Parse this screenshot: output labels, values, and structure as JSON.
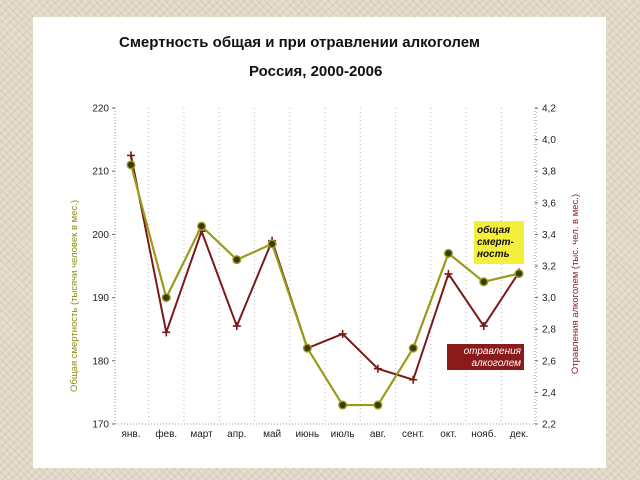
{
  "chart_data": {
    "type": "line",
    "title": "Смертность  общая  и  при  отравлении  алкоголем",
    "subtitle": "Россия, 2000-2006",
    "categories": [
      "янв.",
      "фев.",
      "март",
      "апр.",
      "май",
      "июнь",
      "июль",
      "авг.",
      "сент.",
      "окт.",
      "нояб.",
      "дек."
    ],
    "y_left": {
      "label": "Общая смертность (тысячи человек в мес.)",
      "ylim": [
        170,
        220
      ],
      "ticks": [
        "170",
        "180",
        "190",
        "200",
        "210",
        "220"
      ]
    },
    "y_right": {
      "label": "Отравления алкоголем (тыс. чел. в мес.)",
      "ylim": [
        2.2,
        4.2
      ],
      "ticks": [
        "2,2",
        "2,4",
        "2,6",
        "2,8",
        "3,0",
        "3,2",
        "3,4",
        "3,6",
        "3,8",
        "4,0",
        "4,2"
      ]
    },
    "grid": "vertical dotted",
    "series": [
      {
        "name": "общая смерт-ность",
        "axis": "left",
        "color": "#9a9a1a",
        "marker": "circle",
        "values": [
          211,
          190,
          201.3,
          196,
          198.5,
          182,
          173,
          173,
          182,
          197,
          192.5,
          193.8
        ]
      },
      {
        "name": "отравления алкоголем",
        "axis": "right",
        "color": "#7a1a1a",
        "marker": "plus",
        "values": [
          3.9,
          2.78,
          3.42,
          2.82,
          3.36,
          2.68,
          2.77,
          2.55,
          2.48,
          3.15,
          2.82,
          3.16
        ]
      }
    ],
    "series_label_total": [
      "общая",
      "смерт-",
      "ность"
    ],
    "series_label_alc": [
      "отравления",
      "алкоголем"
    ]
  }
}
